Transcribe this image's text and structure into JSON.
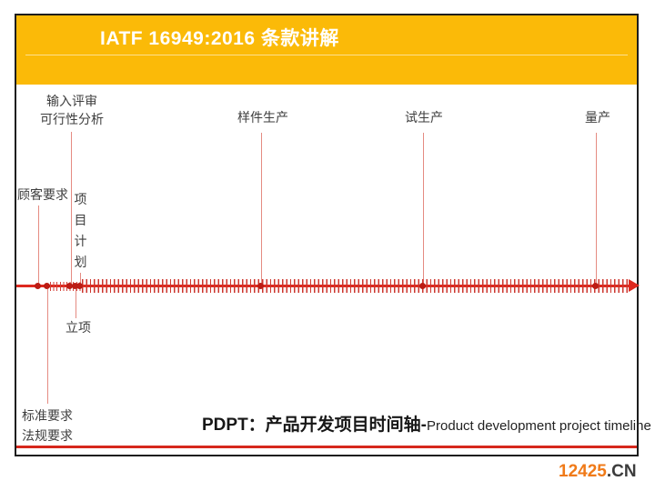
{
  "header": {
    "title": "IATF 16949:2016 条款讲解"
  },
  "timeline": {
    "input_review": "输入评审",
    "feasibility_analysis": "可行性分析",
    "sample_production": "样件生产",
    "trial_production": "试生产",
    "mass_production": "量产",
    "customer_requirements": "顾客要求",
    "project_plan": "项目计划",
    "project_kickoff": "立项",
    "standard_requirements": "标准要求",
    "regulatory_requirements": "法规要求"
  },
  "caption": {
    "bold_part": "PDPT：产品开发项目时间轴-",
    "english": "Product development project timeline"
  },
  "watermark": {
    "number": "12425",
    "suffix": ".CN"
  },
  "colors": {
    "banner_amber": "#FBBA08",
    "timeline_red": "#DE291F",
    "connector_pink": "#E58B82",
    "bottom_rule_red": "#D6271C",
    "watermark_orange": "#F07A18",
    "border_dark": "#1d1d1d"
  }
}
